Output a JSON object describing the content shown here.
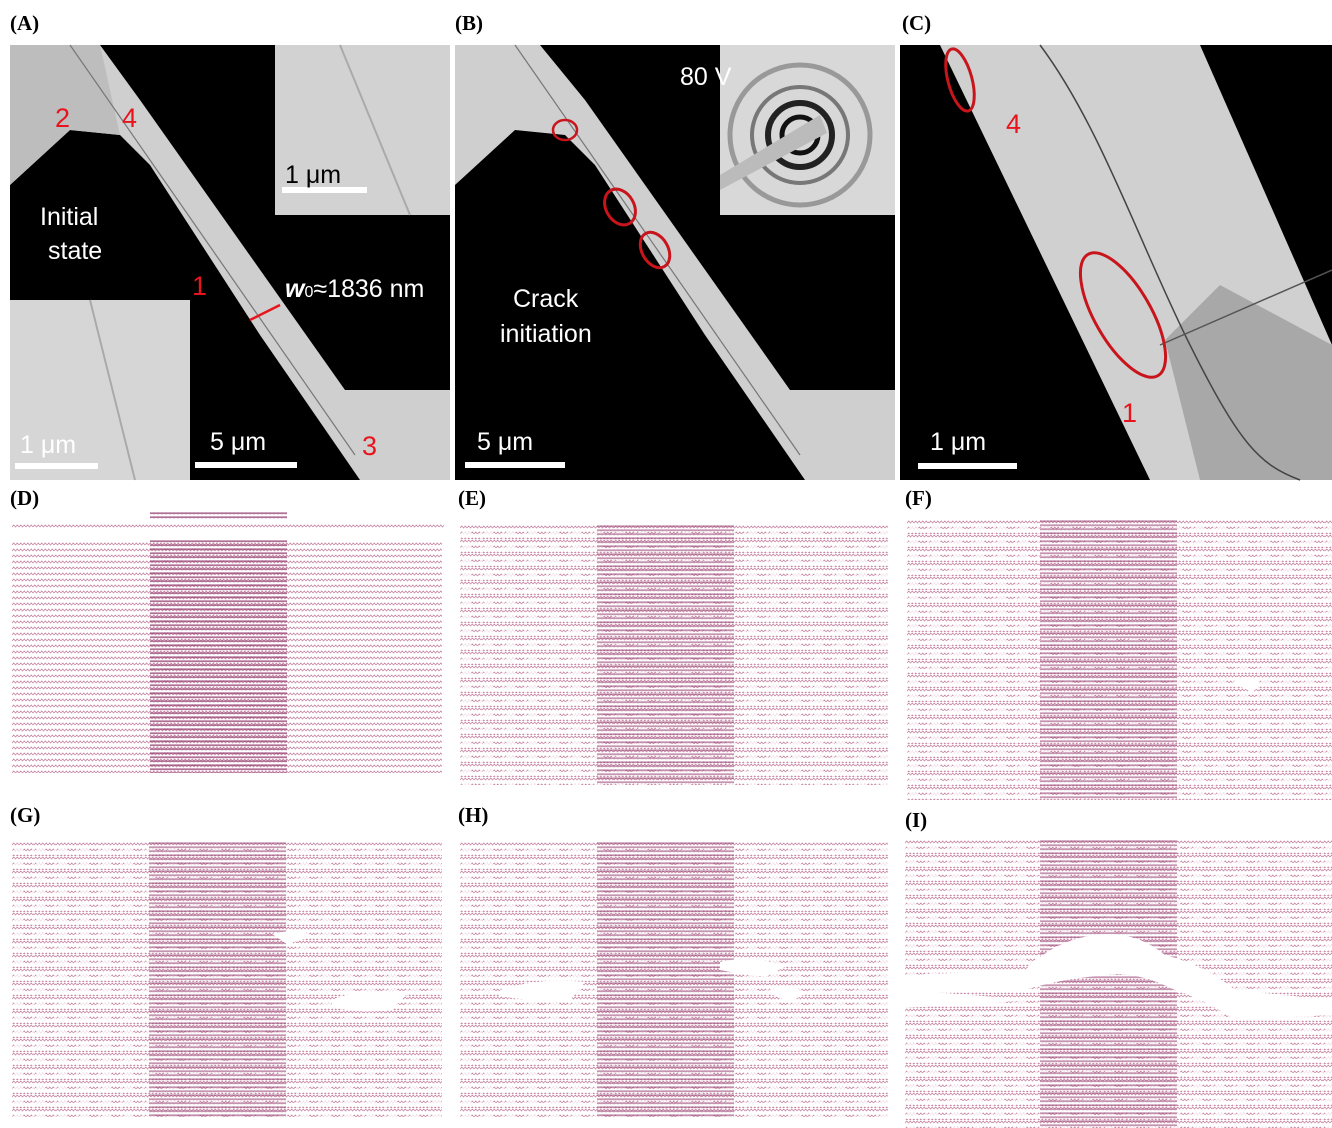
{
  "panels": [
    {
      "label": "(A)",
      "markers": [
        "2",
        "4",
        "1",
        "3"
      ],
      "state": [
        "Initial",
        "state"
      ],
      "width": {
        "symbol": "w",
        "sub": "0",
        "text": "≈1836 nm"
      },
      "scale_bars": [
        "1 μm",
        "1 μm",
        "5 μm"
      ]
    },
    {
      "label": "(B)",
      "voltage": "80 V",
      "state": [
        "Crack",
        "initiation"
      ],
      "scale_bars": [
        "5 μm"
      ]
    },
    {
      "label": "(C)",
      "markers": [
        "4",
        "1"
      ],
      "scale_bars": [
        "1 μm"
      ]
    },
    {
      "label": "(D)"
    },
    {
      "label": "(E)"
    },
    {
      "label": "(F)"
    },
    {
      "label": "(G)"
    },
    {
      "label": "(H)"
    },
    {
      "label": "(I)"
    }
  ]
}
